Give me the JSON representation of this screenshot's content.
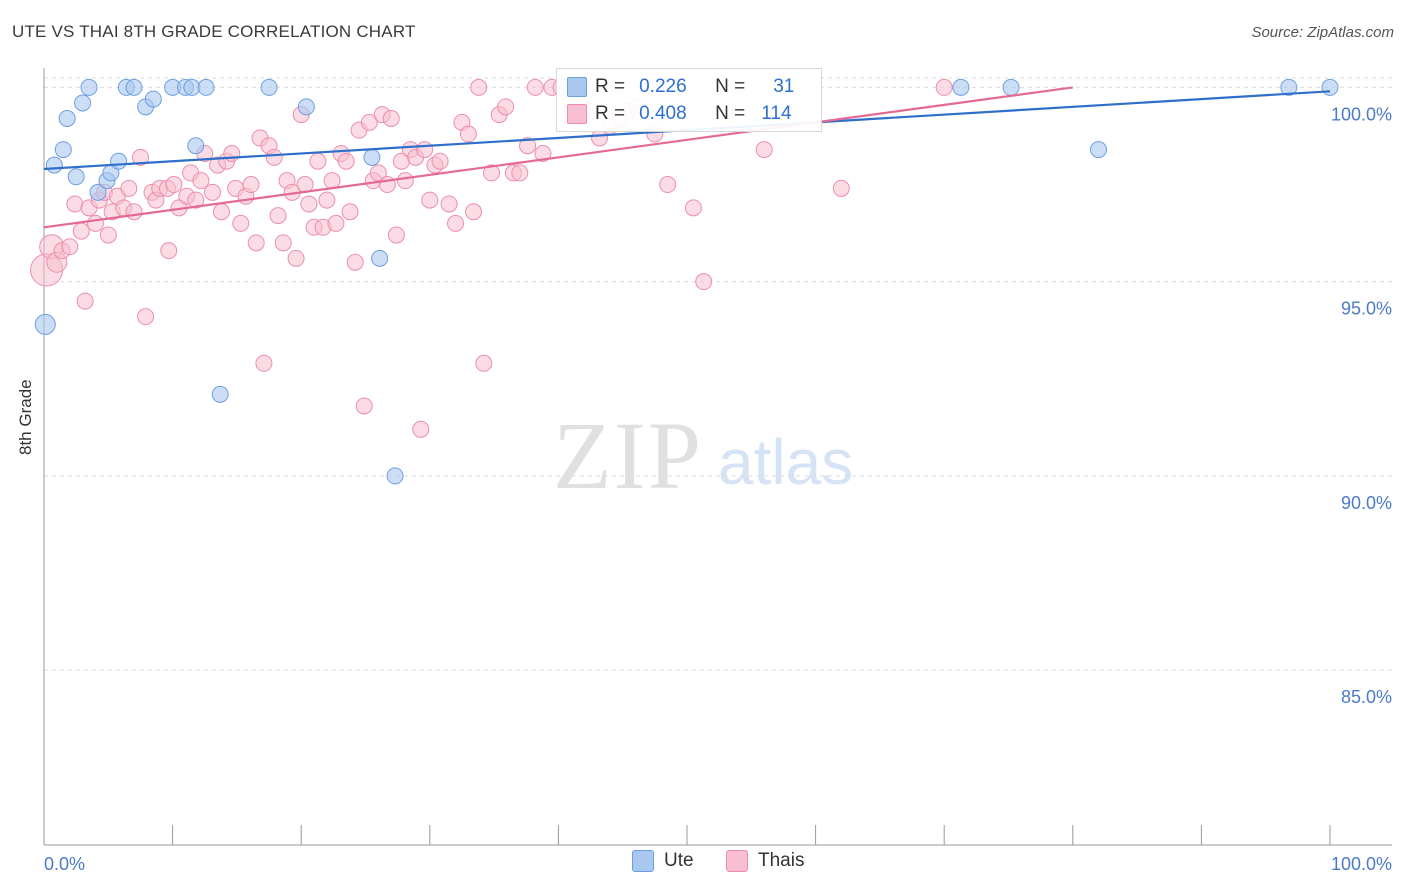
{
  "title": "UTE VS THAI 8TH GRADE CORRELATION CHART",
  "source": "Source: ZipAtlas.com",
  "watermark": {
    "zip": "ZIP",
    "atlas": "atlas"
  },
  "legend": {
    "ute": {
      "r_label": "R =",
      "r_value": "0.226",
      "n_label": "N =",
      "n_value": "31"
    },
    "thais": {
      "r_label": "R =",
      "r_value": "0.408",
      "n_label": "N =",
      "n_value": "114"
    }
  },
  "bottom_legend": {
    "ute": "Ute",
    "thais": "Thais"
  },
  "colors": {
    "ute_fill": "#a9c8f0",
    "ute_stroke": "#6d9fe0",
    "ute_line": "#2f6fcc",
    "thai_fill": "#f7bfd0",
    "thai_stroke": "#ec8eab",
    "thai_line": "#e46a93",
    "grid": "#dddddd",
    "axis_text": "#4a7bc8"
  },
  "chart_data": {
    "type": "scatter",
    "title": "UTE VS THAI 8TH GRADE CORRELATION CHART",
    "xlabel": "",
    "ylabel": "8th Grade",
    "xlim": [
      0,
      100
    ],
    "ylim": [
      80.5,
      100.5
    ],
    "x_tick_labels": [
      "0.0%",
      "100.0%"
    ],
    "y_ticks": [
      85,
      90,
      95,
      100
    ],
    "y_tick_labels": [
      "85.0%",
      "90.0%",
      "95.0%",
      "100.0%"
    ],
    "grid": true,
    "legend_position": "top-center",
    "series": [
      {
        "name": "Ute",
        "trend": [
          [
            0,
            97.9
          ],
          [
            100,
            99.9
          ]
        ],
        "points": [
          [
            0.1,
            93.9,
            10
          ],
          [
            0.8,
            98.0,
            8
          ],
          [
            1.5,
            98.4,
            8
          ],
          [
            1.8,
            99.2,
            8
          ],
          [
            2.5,
            97.7,
            8
          ],
          [
            3.0,
            99.6,
            8
          ],
          [
            3.5,
            100.0,
            8
          ],
          [
            4.2,
            97.3,
            8
          ],
          [
            4.9,
            97.6,
            8
          ],
          [
            5.2,
            97.8,
            8
          ],
          [
            5.8,
            98.1,
            8
          ],
          [
            6.4,
            100.0,
            8
          ],
          [
            7.0,
            100.0,
            8
          ],
          [
            7.9,
            99.5,
            8
          ],
          [
            8.5,
            99.7,
            8
          ],
          [
            10.0,
            100.0,
            8
          ],
          [
            11.0,
            100.0,
            8
          ],
          [
            11.5,
            100.0,
            8
          ],
          [
            11.8,
            98.5,
            8
          ],
          [
            12.6,
            100.0,
            8
          ],
          [
            13.7,
            92.1,
            8
          ],
          [
            17.5,
            100.0,
            8
          ],
          [
            20.4,
            99.5,
            8
          ],
          [
            25.5,
            98.2,
            8
          ],
          [
            26.1,
            95.6,
            8
          ],
          [
            27.3,
            90.0,
            8
          ],
          [
            71.3,
            100.0,
            8
          ],
          [
            75.2,
            100.0,
            8
          ],
          [
            82.0,
            98.4,
            8
          ],
          [
            96.8,
            100.0,
            8
          ],
          [
            100.0,
            100.0,
            8
          ]
        ]
      },
      {
        "name": "Thais",
        "trend": [
          [
            0,
            96.4
          ],
          [
            80,
            100.0
          ]
        ],
        "points": [
          [
            0.2,
            95.3,
            16
          ],
          [
            0.6,
            95.9,
            12
          ],
          [
            1.0,
            95.5,
            10
          ],
          [
            1.4,
            95.8,
            8
          ],
          [
            2.0,
            95.9,
            8
          ],
          [
            2.4,
            97.0,
            8
          ],
          [
            2.9,
            96.3,
            8
          ],
          [
            3.2,
            94.5,
            8
          ],
          [
            3.5,
            96.9,
            8
          ],
          [
            4.0,
            96.5,
            8
          ],
          [
            4.3,
            97.1,
            8
          ],
          [
            4.7,
            97.3,
            8
          ],
          [
            5.0,
            96.2,
            8
          ],
          [
            5.3,
            96.8,
            8
          ],
          [
            5.7,
            97.2,
            8
          ],
          [
            6.2,
            96.9,
            8
          ],
          [
            6.6,
            97.4,
            8
          ],
          [
            7.0,
            96.8,
            8
          ],
          [
            7.5,
            98.2,
            8
          ],
          [
            7.9,
            94.1,
            8
          ],
          [
            8.4,
            97.3,
            8
          ],
          [
            8.7,
            97.1,
            8
          ],
          [
            9.0,
            97.4,
            8
          ],
          [
            9.6,
            97.4,
            8
          ],
          [
            9.7,
            95.8,
            8
          ],
          [
            10.1,
            97.5,
            8
          ],
          [
            10.5,
            96.9,
            8
          ],
          [
            11.1,
            97.2,
            8
          ],
          [
            11.4,
            97.8,
            8
          ],
          [
            11.8,
            97.1,
            8
          ],
          [
            12.2,
            97.6,
            8
          ],
          [
            12.5,
            98.3,
            8
          ],
          [
            13.1,
            97.3,
            8
          ],
          [
            13.5,
            98.0,
            8
          ],
          [
            13.8,
            96.8,
            8
          ],
          [
            14.2,
            98.1,
            8
          ],
          [
            14.6,
            98.3,
            8
          ],
          [
            14.9,
            97.4,
            8
          ],
          [
            15.3,
            96.5,
            8
          ],
          [
            15.7,
            97.2,
            8
          ],
          [
            16.1,
            97.5,
            8
          ],
          [
            16.5,
            96.0,
            8
          ],
          [
            16.8,
            98.7,
            8
          ],
          [
            17.1,
            92.9,
            8
          ],
          [
            17.5,
            98.5,
            8
          ],
          [
            17.9,
            98.2,
            8
          ],
          [
            18.2,
            96.7,
            8
          ],
          [
            18.6,
            96.0,
            8
          ],
          [
            18.9,
            97.6,
            8
          ],
          [
            19.3,
            97.3,
            8
          ],
          [
            19.6,
            95.6,
            8
          ],
          [
            20.0,
            99.3,
            8
          ],
          [
            20.3,
            97.5,
            8
          ],
          [
            20.6,
            97.0,
            8
          ],
          [
            21.0,
            96.4,
            8
          ],
          [
            21.3,
            98.1,
            8
          ],
          [
            21.7,
            96.4,
            8
          ],
          [
            22.0,
            97.1,
            8
          ],
          [
            22.4,
            97.6,
            8
          ],
          [
            22.7,
            96.5,
            8
          ],
          [
            23.1,
            98.3,
            8
          ],
          [
            23.5,
            98.1,
            8
          ],
          [
            23.8,
            96.8,
            8
          ],
          [
            24.2,
            95.5,
            8
          ],
          [
            24.5,
            98.9,
            8
          ],
          [
            24.9,
            91.8,
            8
          ],
          [
            25.3,
            99.1,
            8
          ],
          [
            25.6,
            97.6,
            8
          ],
          [
            26.0,
            97.8,
            8
          ],
          [
            26.3,
            99.3,
            8
          ],
          [
            26.7,
            97.5,
            8
          ],
          [
            27.0,
            99.2,
            8
          ],
          [
            27.4,
            96.2,
            8
          ],
          [
            27.8,
            98.1,
            8
          ],
          [
            28.1,
            97.6,
            8
          ],
          [
            28.5,
            98.4,
            8
          ],
          [
            28.9,
            98.2,
            8
          ],
          [
            29.3,
            91.2,
            8
          ],
          [
            29.6,
            98.4,
            8
          ],
          [
            30.0,
            97.1,
            8
          ],
          [
            30.4,
            98.0,
            8
          ],
          [
            30.8,
            98.1,
            8
          ],
          [
            31.5,
            97.0,
            8
          ],
          [
            32.0,
            96.5,
            8
          ],
          [
            32.5,
            99.1,
            8
          ],
          [
            33.0,
            98.8,
            8
          ],
          [
            33.4,
            96.8,
            8
          ],
          [
            33.8,
            100.0,
            8
          ],
          [
            34.2,
            92.9,
            8
          ],
          [
            34.8,
            97.8,
            8
          ],
          [
            35.4,
            99.3,
            8
          ],
          [
            35.9,
            99.5,
            8
          ],
          [
            36.5,
            97.8,
            8
          ],
          [
            37.0,
            97.8,
            8
          ],
          [
            37.6,
            98.5,
            8
          ],
          [
            38.2,
            100.0,
            8
          ],
          [
            38.8,
            98.3,
            8
          ],
          [
            39.5,
            100.0,
            8
          ],
          [
            40.2,
            100.0,
            8
          ],
          [
            41.0,
            99.6,
            8
          ],
          [
            41.8,
            100.0,
            8
          ],
          [
            42.4,
            99.4,
            8
          ],
          [
            43.2,
            98.7,
            8
          ],
          [
            44.0,
            99.0,
            8
          ],
          [
            44.8,
            99.2,
            8
          ],
          [
            45.4,
            99.4,
            8
          ],
          [
            46.1,
            99.5,
            8
          ],
          [
            47.5,
            98.8,
            8
          ],
          [
            48.5,
            97.5,
            8
          ],
          [
            50.5,
            96.9,
            8
          ],
          [
            51.3,
            95.0,
            8
          ],
          [
            56.0,
            98.4,
            8
          ],
          [
            62.0,
            97.4,
            8
          ],
          [
            70.0,
            100.0,
            8
          ]
        ]
      }
    ]
  }
}
